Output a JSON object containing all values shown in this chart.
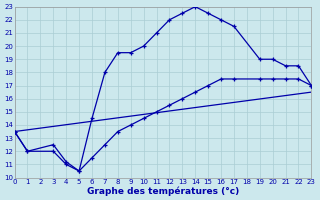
{
  "xlabel": "Graphe des températures (°c)",
  "background_color": "#cce8ed",
  "grid_color": "#aacdd4",
  "line_color": "#0000aa",
  "xlim": [
    0,
    23
  ],
  "ylim": [
    10,
    23
  ],
  "xticks": [
    0,
    1,
    2,
    3,
    4,
    5,
    6,
    7,
    8,
    9,
    10,
    11,
    12,
    13,
    14,
    15,
    16,
    17,
    18,
    19,
    20,
    21,
    22,
    23
  ],
  "yticks": [
    10,
    11,
    12,
    13,
    14,
    15,
    16,
    17,
    18,
    19,
    20,
    21,
    22,
    23
  ],
  "line1_x": [
    0,
    1,
    3,
    4,
    5,
    6,
    7,
    8,
    9,
    10,
    11,
    12,
    13,
    14,
    15,
    16,
    17,
    19,
    20,
    21,
    22,
    23
  ],
  "line1_y": [
    13.5,
    12,
    12,
    11,
    10.5,
    14.5,
    18,
    19.5,
    19.5,
    20,
    21,
    22,
    22.5,
    23,
    22.5,
    22,
    21.5,
    19,
    19,
    18.5,
    18.5,
    17
  ],
  "line2_x": [
    0,
    1,
    3,
    4,
    5,
    6,
    7,
    8,
    9,
    10,
    11,
    12,
    13,
    14,
    15,
    16,
    17,
    19,
    20,
    21,
    22,
    23
  ],
  "line2_y": [
    13.5,
    12,
    12.5,
    11.2,
    10.5,
    11.5,
    12.5,
    13.5,
    14,
    14.5,
    15,
    15.5,
    16,
    16.5,
    17,
    17.5,
    17.5,
    17.5,
    17.5,
    17.5,
    17.5,
    17
  ],
  "line3_x": [
    0,
    23
  ],
  "line3_y": [
    13.5,
    16.5
  ]
}
